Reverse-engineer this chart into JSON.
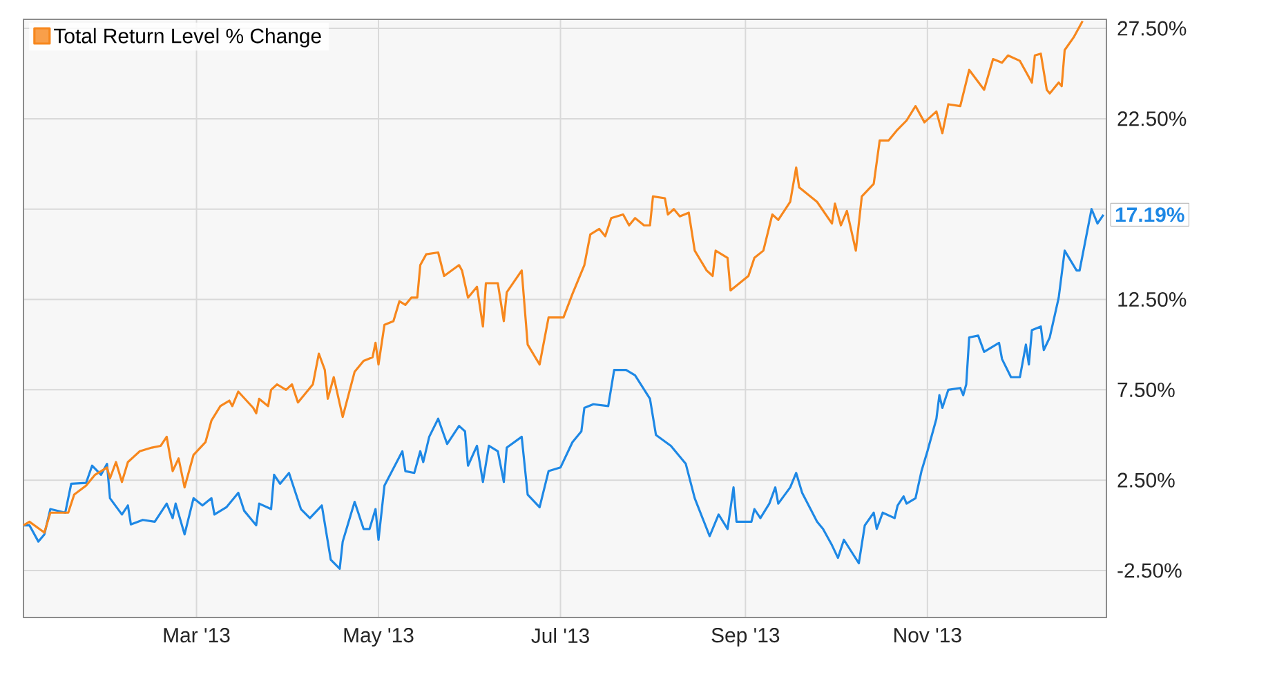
{
  "chart_data": {
    "type": "line",
    "xlim": [
      "2013-01-02",
      "2013-12-31"
    ],
    "ylim": [
      -5.1,
      28
    ],
    "xticks": [
      {
        "value": "2013-03-01",
        "label": "Mar '13"
      },
      {
        "value": "2013-05-01",
        "label": "May '13"
      },
      {
        "value": "2013-07-01",
        "label": "Jul '13"
      },
      {
        "value": "2013-09-01",
        "label": "Sep '13"
      },
      {
        "value": "2013-11-01",
        "label": "Nov '13"
      }
    ],
    "yticks": [
      {
        "value": -2.5,
        "label": "-2.50%"
      },
      {
        "value": 2.5,
        "label": "2.50%"
      },
      {
        "value": 7.5,
        "label": "7.50%"
      },
      {
        "value": 12.5,
        "label": "12.50%"
      },
      {
        "value": 17.5,
        "label": null
      },
      {
        "value": 22.5,
        "label": "22.50%"
      },
      {
        "value": 27.5,
        "label": "27.50%"
      }
    ],
    "grid": true,
    "legend": "top left",
    "marker": "none",
    "line_style": "solid",
    "series": [
      {
        "color": "#1e88e5",
        "x": [
          "2013-01-02",
          "2013-01-04",
          "2013-01-07",
          "2013-01-09",
          "2013-01-11",
          "2013-01-16",
          "2013-01-18",
          "2013-01-23",
          "2013-01-25",
          "2013-01-28",
          "2013-01-30",
          "2013-01-31",
          "2013-02-04",
          "2013-02-06",
          "2013-02-07",
          "2013-02-11",
          "2013-02-15",
          "2013-02-19",
          "2013-02-21",
          "2013-02-22",
          "2013-02-25",
          "2013-02-28",
          "2013-03-03",
          "2013-03-06",
          "2013-03-07",
          "2013-03-11",
          "2013-03-15",
          "2013-03-17",
          "2013-03-21",
          "2013-03-22",
          "2013-03-26",
          "2013-03-27",
          "2013-03-29",
          "2013-04-01",
          "2013-04-05",
          "2013-04-08",
          "2013-04-12",
          "2013-04-15",
          "2013-04-18",
          "2013-04-19",
          "2013-04-23",
          "2013-04-26",
          "2013-04-28",
          "2013-04-30",
          "2013-05-01",
          "2013-05-03",
          "2013-05-09",
          "2013-05-10",
          "2013-05-13",
          "2013-05-15",
          "2013-05-16",
          "2013-05-18",
          "2013-05-21",
          "2013-05-24",
          "2013-05-28",
          "2013-05-30",
          "2013-05-31",
          "2013-06-03",
          "2013-06-05",
          "2013-06-07",
          "2013-06-10",
          "2013-06-12",
          "2013-06-13",
          "2013-06-18",
          "2013-06-20",
          "2013-06-24",
          "2013-06-27",
          "2013-07-01",
          "2013-07-05",
          "2013-07-08",
          "2013-07-09",
          "2013-07-12",
          "2013-07-17",
          "2013-07-19",
          "2013-07-23",
          "2013-07-26",
          "2013-07-31",
          "2013-08-02",
          "2013-08-07",
          "2013-08-12",
          "2013-08-15",
          "2013-08-20",
          "2013-08-23",
          "2013-08-26",
          "2013-08-28",
          "2013-08-29",
          "2013-09-03",
          "2013-09-04",
          "2013-09-06",
          "2013-09-09",
          "2013-09-11",
          "2013-09-12",
          "2013-09-16",
          "2013-09-18",
          "2013-09-20",
          "2013-09-25",
          "2013-09-27",
          "2013-09-30",
          "2013-10-02",
          "2013-10-04",
          "2013-10-09",
          "2013-10-11",
          "2013-10-14",
          "2013-10-15",
          "2013-10-17",
          "2013-10-21",
          "2013-10-22",
          "2013-10-24",
          "2013-10-25",
          "2013-10-28",
          "2013-10-30",
          "2013-11-01",
          "2013-11-04",
          "2013-11-05",
          "2013-11-06",
          "2013-11-08",
          "2013-11-12",
          "2013-11-13",
          "2013-11-14",
          "2013-11-15",
          "2013-11-18",
          "2013-11-20",
          "2013-11-25",
          "2013-11-26",
          "2013-11-29",
          "2013-12-02",
          "2013-12-04",
          "2013-12-05",
          "2013-12-06",
          "2013-12-09",
          "2013-12-10",
          "2013-12-12",
          "2013-12-15",
          "2013-12-17",
          "2013-12-21",
          "2013-12-22",
          "2013-12-26",
          "2013-12-28",
          "2013-12-30"
        ],
        "values": [
          0.0,
          0.0,
          -0.9,
          -0.5,
          0.9,
          0.7,
          2.3,
          2.35,
          3.3,
          2.8,
          3.4,
          1.5,
          0.6,
          1.1,
          0.05,
          0.3,
          0.2,
          1.2,
          0.4,
          1.2,
          -0.5,
          1.5,
          1.1,
          1.5,
          0.6,
          1.0,
          1.8,
          0.8,
          0.0,
          1.2,
          0.9,
          2.8,
          2.3,
          2.9,
          0.9,
          0.4,
          1.1,
          -1.9,
          -2.4,
          -0.9,
          1.3,
          -0.2,
          -0.2,
          0.9,
          -0.8,
          2.2,
          4.1,
          3.0,
          2.9,
          4.1,
          3.5,
          4.9,
          5.9,
          4.5,
          5.5,
          5.2,
          3.3,
          4.4,
          2.4,
          4.4,
          4.1,
          2.4,
          4.3,
          4.9,
          1.7,
          1.0,
          3.0,
          3.2,
          4.6,
          5.2,
          6.5,
          6.7,
          6.6,
          8.6,
          8.6,
          8.3,
          7.0,
          5.0,
          4.4,
          3.4,
          1.5,
          -0.6,
          0.6,
          -0.2,
          2.1,
          0.2,
          0.2,
          0.9,
          0.4,
          1.2,
          2.1,
          1.2,
          2.1,
          2.9,
          1.8,
          0.2,
          -0.2,
          -1.1,
          -1.8,
          -0.8,
          -2.1,
          0.0,
          0.7,
          -0.2,
          0.7,
          0.4,
          1.1,
          1.6,
          1.2,
          1.5,
          3.0,
          4.1,
          5.9,
          7.2,
          6.5,
          7.5,
          7.6,
          7.2,
          7.8,
          10.4,
          10.5,
          9.6,
          10.1,
          9.2,
          8.2,
          8.2,
          10.0,
          8.9,
          10.8,
          11.0,
          9.7,
          10.4,
          12.6,
          15.2,
          14.1,
          14.1,
          17.5,
          16.7,
          17.19
        ]
      },
      {
        "name": "Total Return Level % Change",
        "color": "#f7871d",
        "x": [
          "2013-01-02",
          "2013-01-04",
          "2013-01-09",
          "2013-01-11",
          "2013-01-17",
          "2013-01-19",
          "2013-01-23",
          "2013-01-26",
          "2013-01-30",
          "2013-01-31",
          "2013-02-02",
          "2013-02-04",
          "2013-02-06",
          "2013-02-08",
          "2013-02-10",
          "2013-02-14",
          "2013-02-17",
          "2013-02-19",
          "2013-02-21",
          "2013-02-23",
          "2013-02-25",
          "2013-02-28",
          "2013-03-04",
          "2013-03-06",
          "2013-03-09",
          "2013-03-12",
          "2013-03-13",
          "2013-03-15",
          "2013-03-20",
          "2013-03-21",
          "2013-03-22",
          "2013-03-25",
          "2013-03-26",
          "2013-03-28",
          "2013-03-31",
          "2013-04-02",
          "2013-04-04",
          "2013-04-06",
          "2013-04-09",
          "2013-04-11",
          "2013-04-13",
          "2013-04-14",
          "2013-04-16",
          "2013-04-19",
          "2013-04-23",
          "2013-04-26",
          "2013-04-29",
          "2013-04-30",
          "2013-05-01",
          "2013-05-03",
          "2013-05-06",
          "2013-05-08",
          "2013-05-10",
          "2013-05-12",
          "2013-05-14",
          "2013-05-15",
          "2013-05-17",
          "2013-05-21",
          "2013-05-23",
          "2013-05-28",
          "2013-05-29",
          "2013-05-31",
          "2013-06-03",
          "2013-06-05",
          "2013-06-06",
          "2013-06-10",
          "2013-06-12",
          "2013-06-13",
          "2013-06-18",
          "2013-06-20",
          "2013-06-24",
          "2013-06-27",
          "2013-07-02",
          "2013-07-05",
          "2013-07-09",
          "2013-07-11",
          "2013-07-14",
          "2013-07-16",
          "2013-07-18",
          "2013-07-22",
          "2013-07-24",
          "2013-07-26",
          "2013-07-29",
          "2013-07-31",
          "2013-08-01",
          "2013-08-05",
          "2013-08-06",
          "2013-08-08",
          "2013-08-10",
          "2013-08-13",
          "2013-08-15",
          "2013-08-19",
          "2013-08-21",
          "2013-08-22",
          "2013-08-26",
          "2013-08-27",
          "2013-08-30",
          "2013-09-02",
          "2013-09-04",
          "2013-09-07",
          "2013-09-10",
          "2013-09-12",
          "2013-09-16",
          "2013-09-18",
          "2013-09-19",
          "2013-09-25",
          "2013-09-30",
          "2013-10-01",
          "2013-10-03",
          "2013-10-05",
          "2013-10-08",
          "2013-10-10",
          "2013-10-14",
          "2013-10-16",
          "2013-10-19",
          "2013-10-22",
          "2013-10-25",
          "2013-10-28",
          "2013-10-31",
          "2013-11-04",
          "2013-11-06",
          "2013-11-08",
          "2013-11-12",
          "2013-11-15",
          "2013-11-20",
          "2013-11-23",
          "2013-11-26",
          "2013-11-28",
          "2013-12-02",
          "2013-12-06",
          "2013-12-07",
          "2013-12-09",
          "2013-12-11",
          "2013-12-12",
          "2013-12-15",
          "2013-12-16",
          "2013-12-17",
          "2013-12-20",
          "2013-12-23"
        ],
        "values": [
          0.0,
          0.2,
          -0.4,
          0.7,
          0.7,
          1.7,
          2.2,
          2.8,
          3.2,
          2.6,
          3.5,
          2.4,
          3.5,
          3.8,
          4.1,
          4.3,
          4.4,
          4.9,
          3.0,
          3.7,
          2.1,
          3.9,
          4.6,
          5.8,
          6.6,
          6.9,
          6.6,
          7.4,
          6.5,
          6.2,
          7.0,
          6.6,
          7.5,
          7.8,
          7.5,
          7.8,
          6.8,
          7.2,
          7.8,
          9.5,
          8.6,
          7.0,
          8.2,
          6.0,
          8.5,
          9.1,
          9.3,
          10.1,
          8.9,
          11.1,
          11.3,
          12.4,
          12.2,
          12.6,
          12.6,
          14.4,
          15.0,
          15.1,
          13.8,
          14.4,
          14.1,
          12.6,
          13.2,
          11.0,
          13.4,
          13.4,
          11.3,
          12.9,
          14.1,
          10.0,
          8.9,
          11.5,
          11.5,
          12.8,
          14.4,
          16.1,
          16.4,
          16.0,
          17.0,
          17.2,
          16.6,
          17.0,
          16.6,
          16.6,
          18.2,
          18.1,
          17.2,
          17.5,
          17.1,
          17.3,
          15.2,
          14.1,
          13.8,
          15.2,
          14.8,
          13.0,
          13.4,
          13.8,
          14.8,
          15.2,
          17.2,
          16.9,
          17.9,
          19.8,
          18.7,
          17.9,
          16.7,
          17.8,
          16.6,
          17.4,
          15.2,
          18.2,
          18.9,
          21.3,
          21.3,
          21.9,
          22.4,
          23.2,
          22.3,
          22.9,
          21.7,
          23.3,
          23.2,
          25.2,
          24.1,
          25.8,
          25.6,
          26.0,
          25.7,
          24.5,
          26.0,
          26.1,
          24.1,
          23.9,
          24.5,
          24.3,
          26.3,
          27.0,
          27.9
        ]
      }
    ],
    "annotations": [
      {
        "text": "17.19%",
        "x": "2013-12-30",
        "y": 17.19
      }
    ]
  }
}
